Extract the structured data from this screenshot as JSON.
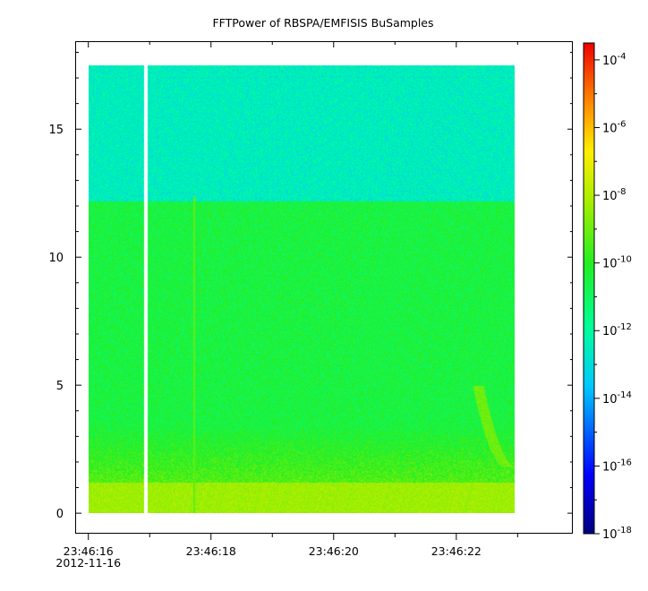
{
  "chart_data": {
    "type": "heatmap",
    "title": "FFTPower of RBSPA/EMFISIS  BuSamples",
    "xlabel": "",
    "ylabel": "",
    "x_ticks": [
      {
        "time": "23:46:16",
        "date": "2012-11-16"
      },
      {
        "time": "23:46:18",
        "date": ""
      },
      {
        "time": "23:46:20",
        "date": ""
      },
      {
        "time": "23:46:22",
        "date": ""
      }
    ],
    "x_range_seconds": [
      -0.2,
      7.9
    ],
    "x_data_range_seconds": [
      0.0,
      6.95
    ],
    "y_ticks": [
      0,
      5,
      10,
      15
    ],
    "y_range": [
      -0.8,
      18.4
    ],
    "y_data_max": 17.5,
    "colorbar": {
      "scale": "log",
      "range_exponents": [
        -18,
        -3.5
      ],
      "ticks": [
        {
          "base": "10",
          "exp": "-4"
        },
        {
          "base": "10",
          "exp": "-6"
        },
        {
          "base": "10",
          "exp": "-8"
        },
        {
          "base": "10",
          "exp": "-10"
        },
        {
          "base": "10",
          "exp": "-12"
        },
        {
          "base": "10",
          "exp": "-14"
        },
        {
          "base": "10",
          "exp": "-16"
        },
        {
          "base": "10",
          "exp": "-18"
        }
      ]
    },
    "features": {
      "data_gap_seconds": 0.93,
      "band_edge_y": 12.2,
      "upper_band_log_power": -12.5,
      "lower_band_log_power": -10.5,
      "bottom_log_power": -8.3,
      "vertical_line_seconds": 1.72,
      "chorus_start": [
        6.35,
        5.0
      ],
      "chorus_end": [
        6.9,
        1.8
      ]
    }
  }
}
